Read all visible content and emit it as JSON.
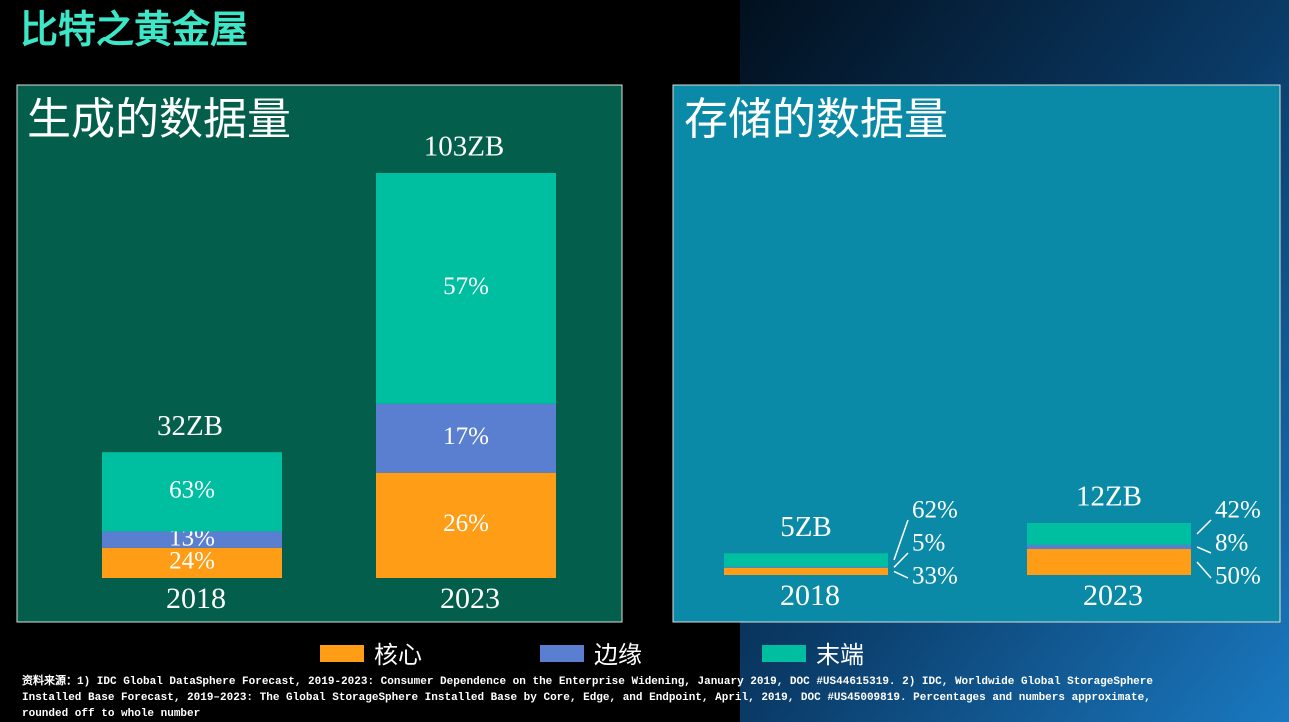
{
  "header": {
    "title": "比特之黄金屋"
  },
  "chart_data": [
    {
      "type": "bar",
      "title": "生成的数据量",
      "categories": [
        "2018",
        "2023"
      ],
      "totals": [
        32,
        103
      ],
      "total_labels": [
        "32ZB",
        "103ZB"
      ],
      "series": [
        {
          "name": "核心",
          "color": "#ff9e16",
          "values": [
            24,
            26
          ],
          "value_labels": [
            "24%",
            "26%"
          ]
        },
        {
          "name": "边缘",
          "color": "#5b7fd0",
          "values": [
            13,
            17
          ],
          "value_labels": [
            "13%",
            "17%"
          ]
        },
        {
          "name": "末端",
          "color": "#00bfa0",
          "values": [
            63,
            57
          ],
          "value_labels": [
            "63%",
            "57%"
          ]
        }
      ]
    },
    {
      "type": "bar",
      "title": "存储的数据量",
      "categories": [
        "2018",
        "2023"
      ],
      "totals": [
        5,
        12
      ],
      "total_labels": [
        "5ZB",
        "12ZB"
      ],
      "series": [
        {
          "color": "#ff9e16",
          "values": [
            33,
            50
          ],
          "value_labels": [
            "33%",
            "50%"
          ]
        },
        {
          "color": "#5b7fd0",
          "values": [
            5,
            8
          ],
          "value_labels": [
            "5%",
            "8%"
          ]
        },
        {
          "color": "#00bfa0",
          "values": [
            62,
            42
          ],
          "value_labels": [
            "62%",
            "42%"
          ]
        }
      ]
    }
  ],
  "footnote": "资料来源：1) IDC Global DataSphere Forecast, 2019-2023: Consumer Dependence on the Enterprise Widening, January 2019, DOC #US44615319. 2) IDC, Worldwide Global StorageSphere Installed Base Forecast, 2019–2023: The Global StorageSphere Installed Base by Core, Edge, and Endpoint, April, 2019, DOC #US45009819. Percentages and numbers approximate, rounded off to whole number"
}
